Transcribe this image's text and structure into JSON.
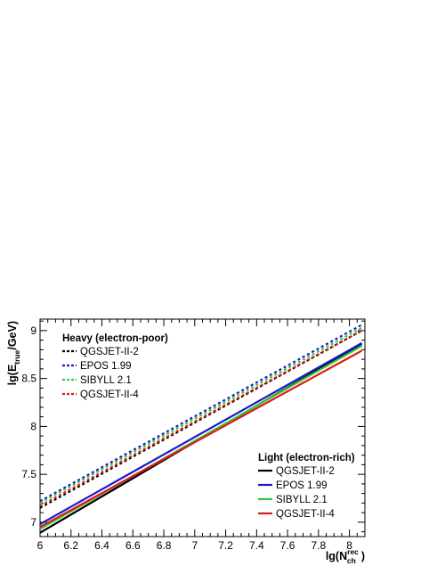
{
  "chart_data": {
    "type": "line",
    "xlabel": "lg(N_ch^rec)",
    "ylabel": "lg(E_true/GeV)",
    "xlim": [
      6.0,
      8.1
    ],
    "ylim": [
      6.85,
      9.12
    ],
    "x_ticks": [
      6,
      6.2,
      6.4,
      6.6,
      6.8,
      7,
      7.2,
      7.4,
      7.6,
      7.8,
      8
    ],
    "y_ticks": [
      7,
      7.5,
      8,
      8.5,
      9
    ],
    "x_tick_labels": [
      "6",
      "6.2",
      "6.4",
      "6.6",
      "6.8",
      "7",
      "7.2",
      "7.4",
      "7.6",
      "7.8",
      "8"
    ],
    "y_tick_labels": [
      "7",
      "7.5",
      "8",
      "8.5",
      "9"
    ],
    "legend_groups": [
      {
        "title": "Heavy (electron-poor)",
        "placement": "top-left",
        "style": "dotted",
        "series": [
          {
            "name": "QGSJET-II-2",
            "color": "#000000",
            "x": [
              6.0,
              8.08
            ],
            "y": [
              7.15,
              9.0
            ]
          },
          {
            "name": "EPOS 1.99",
            "color": "#1a1acc",
            "x": [
              6.0,
              8.08
            ],
            "y": [
              7.22,
              9.06
            ]
          },
          {
            "name": "SIBYLL 2.1",
            "color": "#33cc33",
            "x": [
              6.0,
              8.08
            ],
            "y": [
              7.2,
              9.03
            ]
          },
          {
            "name": "QGSJET-II-4",
            "color": "#dd1a1a",
            "x": [
              6.0,
              8.08
            ],
            "y": [
              7.17,
              9.0
            ]
          }
        ]
      },
      {
        "title": "Light (electron-rich)",
        "placement": "bottom-right",
        "style": "solid",
        "series": [
          {
            "name": "QGSJET-II-2",
            "color": "#000000",
            "x": [
              6.0,
              8.08
            ],
            "y": [
              6.89,
              8.86
            ]
          },
          {
            "name": "EPOS 1.99",
            "color": "#1a1acc",
            "x": [
              6.0,
              8.08
            ],
            "y": [
              6.98,
              8.87
            ]
          },
          {
            "name": "SIBYLL 2.1",
            "color": "#33cc33",
            "x": [
              6.0,
              8.08
            ],
            "y": [
              6.93,
              8.84
            ]
          },
          {
            "name": "QGSJET-II-4",
            "color": "#dd1a1a",
            "x": [
              6.0,
              8.08
            ],
            "y": [
              6.95,
              8.79
            ]
          }
        ]
      }
    ],
    "grid": false
  }
}
